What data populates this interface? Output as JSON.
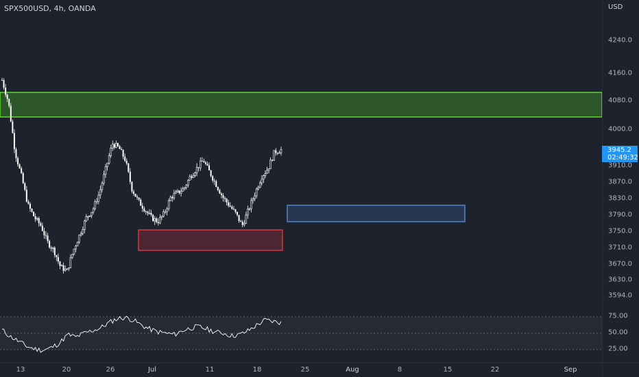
{
  "header": {
    "symbol_title": "SPX500USD, 4h, OANDA"
  },
  "price_axis": {
    "currency": "USD",
    "ticks": [
      "4240.0",
      "4160.0",
      "4080.0",
      "4000.0",
      "3910.0",
      "3870.0",
      "3830.0",
      "3790.0",
      "3750.0",
      "3710.0",
      "3670.0",
      "3630.0",
      "3594.0"
    ],
    "last_price": "3945.2",
    "countdown": "02:49:32"
  },
  "time_axis": {
    "labels": [
      "13",
      "20",
      "26",
      "Jul",
      "11",
      "18",
      "25",
      "Aug",
      "8",
      "15",
      "22",
      "Sep"
    ]
  },
  "rsi_axis": {
    "ticks": [
      "75.00",
      "50.00",
      "25.00"
    ]
  },
  "colors": {
    "background": "#1e222d",
    "candle": "#ffffff",
    "supply_zone_fill": "#2f5f2a",
    "supply_zone_border": "#6cff2f",
    "demand_zone_fill": "#5a2a34",
    "demand_zone_border": "#ff3b3b",
    "target_zone_fill": "#2c3f5e",
    "target_zone_border": "#5b9cf0",
    "rsi_line": "#ffffff",
    "rsi_band": "#2a2e39"
  },
  "chart_data": {
    "type": "candlestick",
    "price_zones": [
      {
        "name": "supply",
        "top": 4085,
        "bottom": 4025
      },
      {
        "name": "demand",
        "top": 3750,
        "bottom": 3700
      },
      {
        "name": "target",
        "top": 3810,
        "bottom": 3770
      }
    ],
    "price_path": [
      4115,
      4060,
      3940,
      3880,
      3810,
      3780,
      3760,
      3720,
      3700,
      3660,
      3650,
      3700,
      3740,
      3780,
      3800,
      3840,
      3900,
      3960,
      3950,
      3920,
      3850,
      3820,
      3800,
      3780,
      3770,
      3790,
      3830,
      3840,
      3850,
      3880,
      3900,
      3920,
      3890,
      3860,
      3830,
      3810,
      3790,
      3760,
      3800,
      3840,
      3880,
      3900,
      3940,
      3945
    ],
    "rsi_path": [
      55,
      45,
      38,
      30,
      26,
      24,
      28,
      35,
      48,
      44,
      50,
      54,
      58,
      66,
      72,
      74,
      70,
      62,
      56,
      52,
      50,
      48,
      54,
      58,
      60,
      56,
      52,
      50,
      46,
      48,
      54,
      62,
      70,
      68,
      66
    ],
    "rsi_levels": [
      75,
      50,
      25
    ]
  }
}
